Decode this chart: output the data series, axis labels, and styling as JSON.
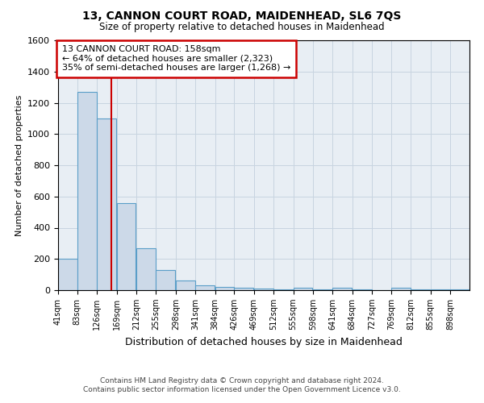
{
  "title": "13, CANNON COURT ROAD, MAIDENHEAD, SL6 7QS",
  "subtitle": "Size of property relative to detached houses in Maidenhead",
  "xlabel": "Distribution of detached houses by size in Maidenhead",
  "ylabel": "Number of detached properties",
  "footnote1": "Contains HM Land Registry data © Crown copyright and database right 2024.",
  "footnote2": "Contains public sector information licensed under the Open Government Licence v3.0.",
  "annotation_line1": "13 CANNON COURT ROAD: 158sqm",
  "annotation_line2": "← 64% of detached houses are smaller (2,323)",
  "annotation_line3": "35% of semi-detached houses are larger (1,268) →",
  "bar_edges": [
    41,
    83,
    126,
    169,
    212,
    255,
    298,
    341,
    384,
    426,
    469,
    512,
    555,
    598,
    641,
    684,
    727,
    769,
    812,
    855,
    898
  ],
  "bar_heights": [
    200,
    1270,
    1100,
    560,
    270,
    130,
    60,
    30,
    20,
    15,
    10,
    5,
    15,
    5,
    15,
    5,
    0,
    15,
    5,
    5,
    5
  ],
  "property_size": 158,
  "bar_color": "#ccd9e8",
  "bar_edge_color": "#5a9ec8",
  "red_line_color": "#cc0000",
  "grid_color": "#c8d4e0",
  "plot_bg_color": "#e8eef4",
  "fig_bg_color": "#ffffff",
  "annotation_box_color": "#ffffff",
  "annotation_border_color": "#cc0000",
  "ylim": [
    0,
    1600
  ],
  "yticks": [
    0,
    200,
    400,
    600,
    800,
    1000,
    1200,
    1400,
    1600
  ]
}
